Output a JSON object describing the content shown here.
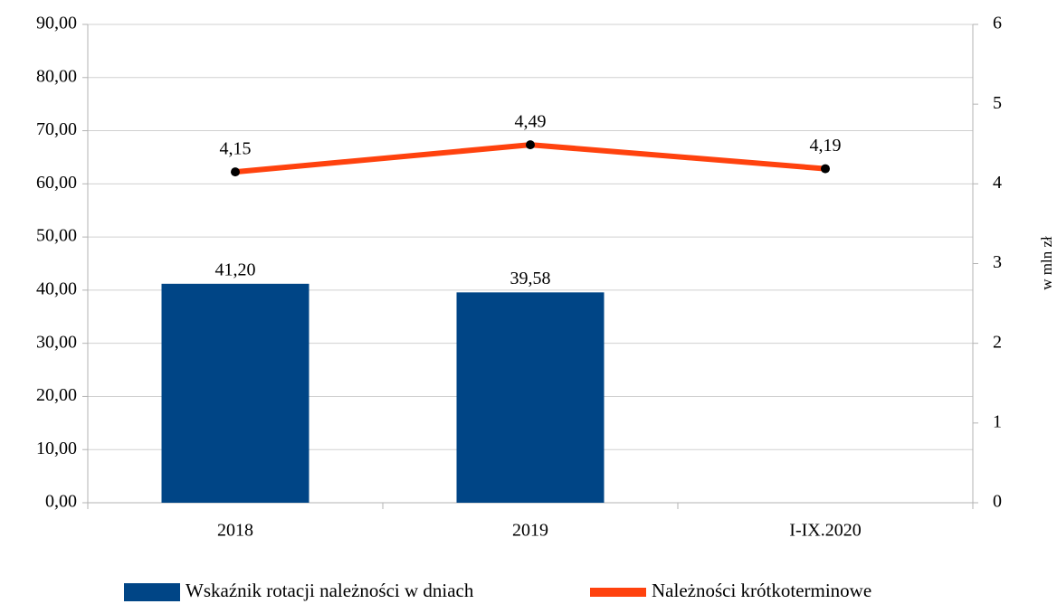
{
  "chart_data": {
    "type": "bar",
    "categories": [
      "2018",
      "2019",
      "I-IX.2020"
    ],
    "series": [
      {
        "name": "Wskaźnik rotacji należności w dniach",
        "type": "bar",
        "color": "#004586",
        "values": [
          41.2,
          39.58,
          null
        ],
        "value_labels": [
          "41,20",
          "39,58",
          null
        ]
      },
      {
        "name": "Należności krótkoterminowe",
        "type": "line",
        "axis": "y2",
        "color": "#ff420e",
        "values": [
          4.15,
          4.49,
          4.19
        ],
        "value_labels": [
          "4,15",
          "4,49",
          "4,19"
        ]
      }
    ],
    "ylim": [
      0,
      90
    ],
    "yticks": [
      {
        "value": 0,
        "label": "0,00"
      },
      {
        "value": 10,
        "label": "10,00"
      },
      {
        "value": 20,
        "label": "20,00"
      },
      {
        "value": 30,
        "label": "30,00"
      },
      {
        "value": 40,
        "label": "40,00"
      },
      {
        "value": 50,
        "label": "50,00"
      },
      {
        "value": 60,
        "label": "60,00"
      },
      {
        "value": 70,
        "label": "70,00"
      },
      {
        "value": 80,
        "label": "80,00"
      },
      {
        "value": 90,
        "label": "90,00"
      }
    ],
    "y2lim": [
      0,
      6
    ],
    "y2ticks": [
      0,
      1,
      2,
      3,
      4,
      5,
      6
    ],
    "y2label": "w mln zł",
    "grid": true,
    "legend": "bottom"
  }
}
